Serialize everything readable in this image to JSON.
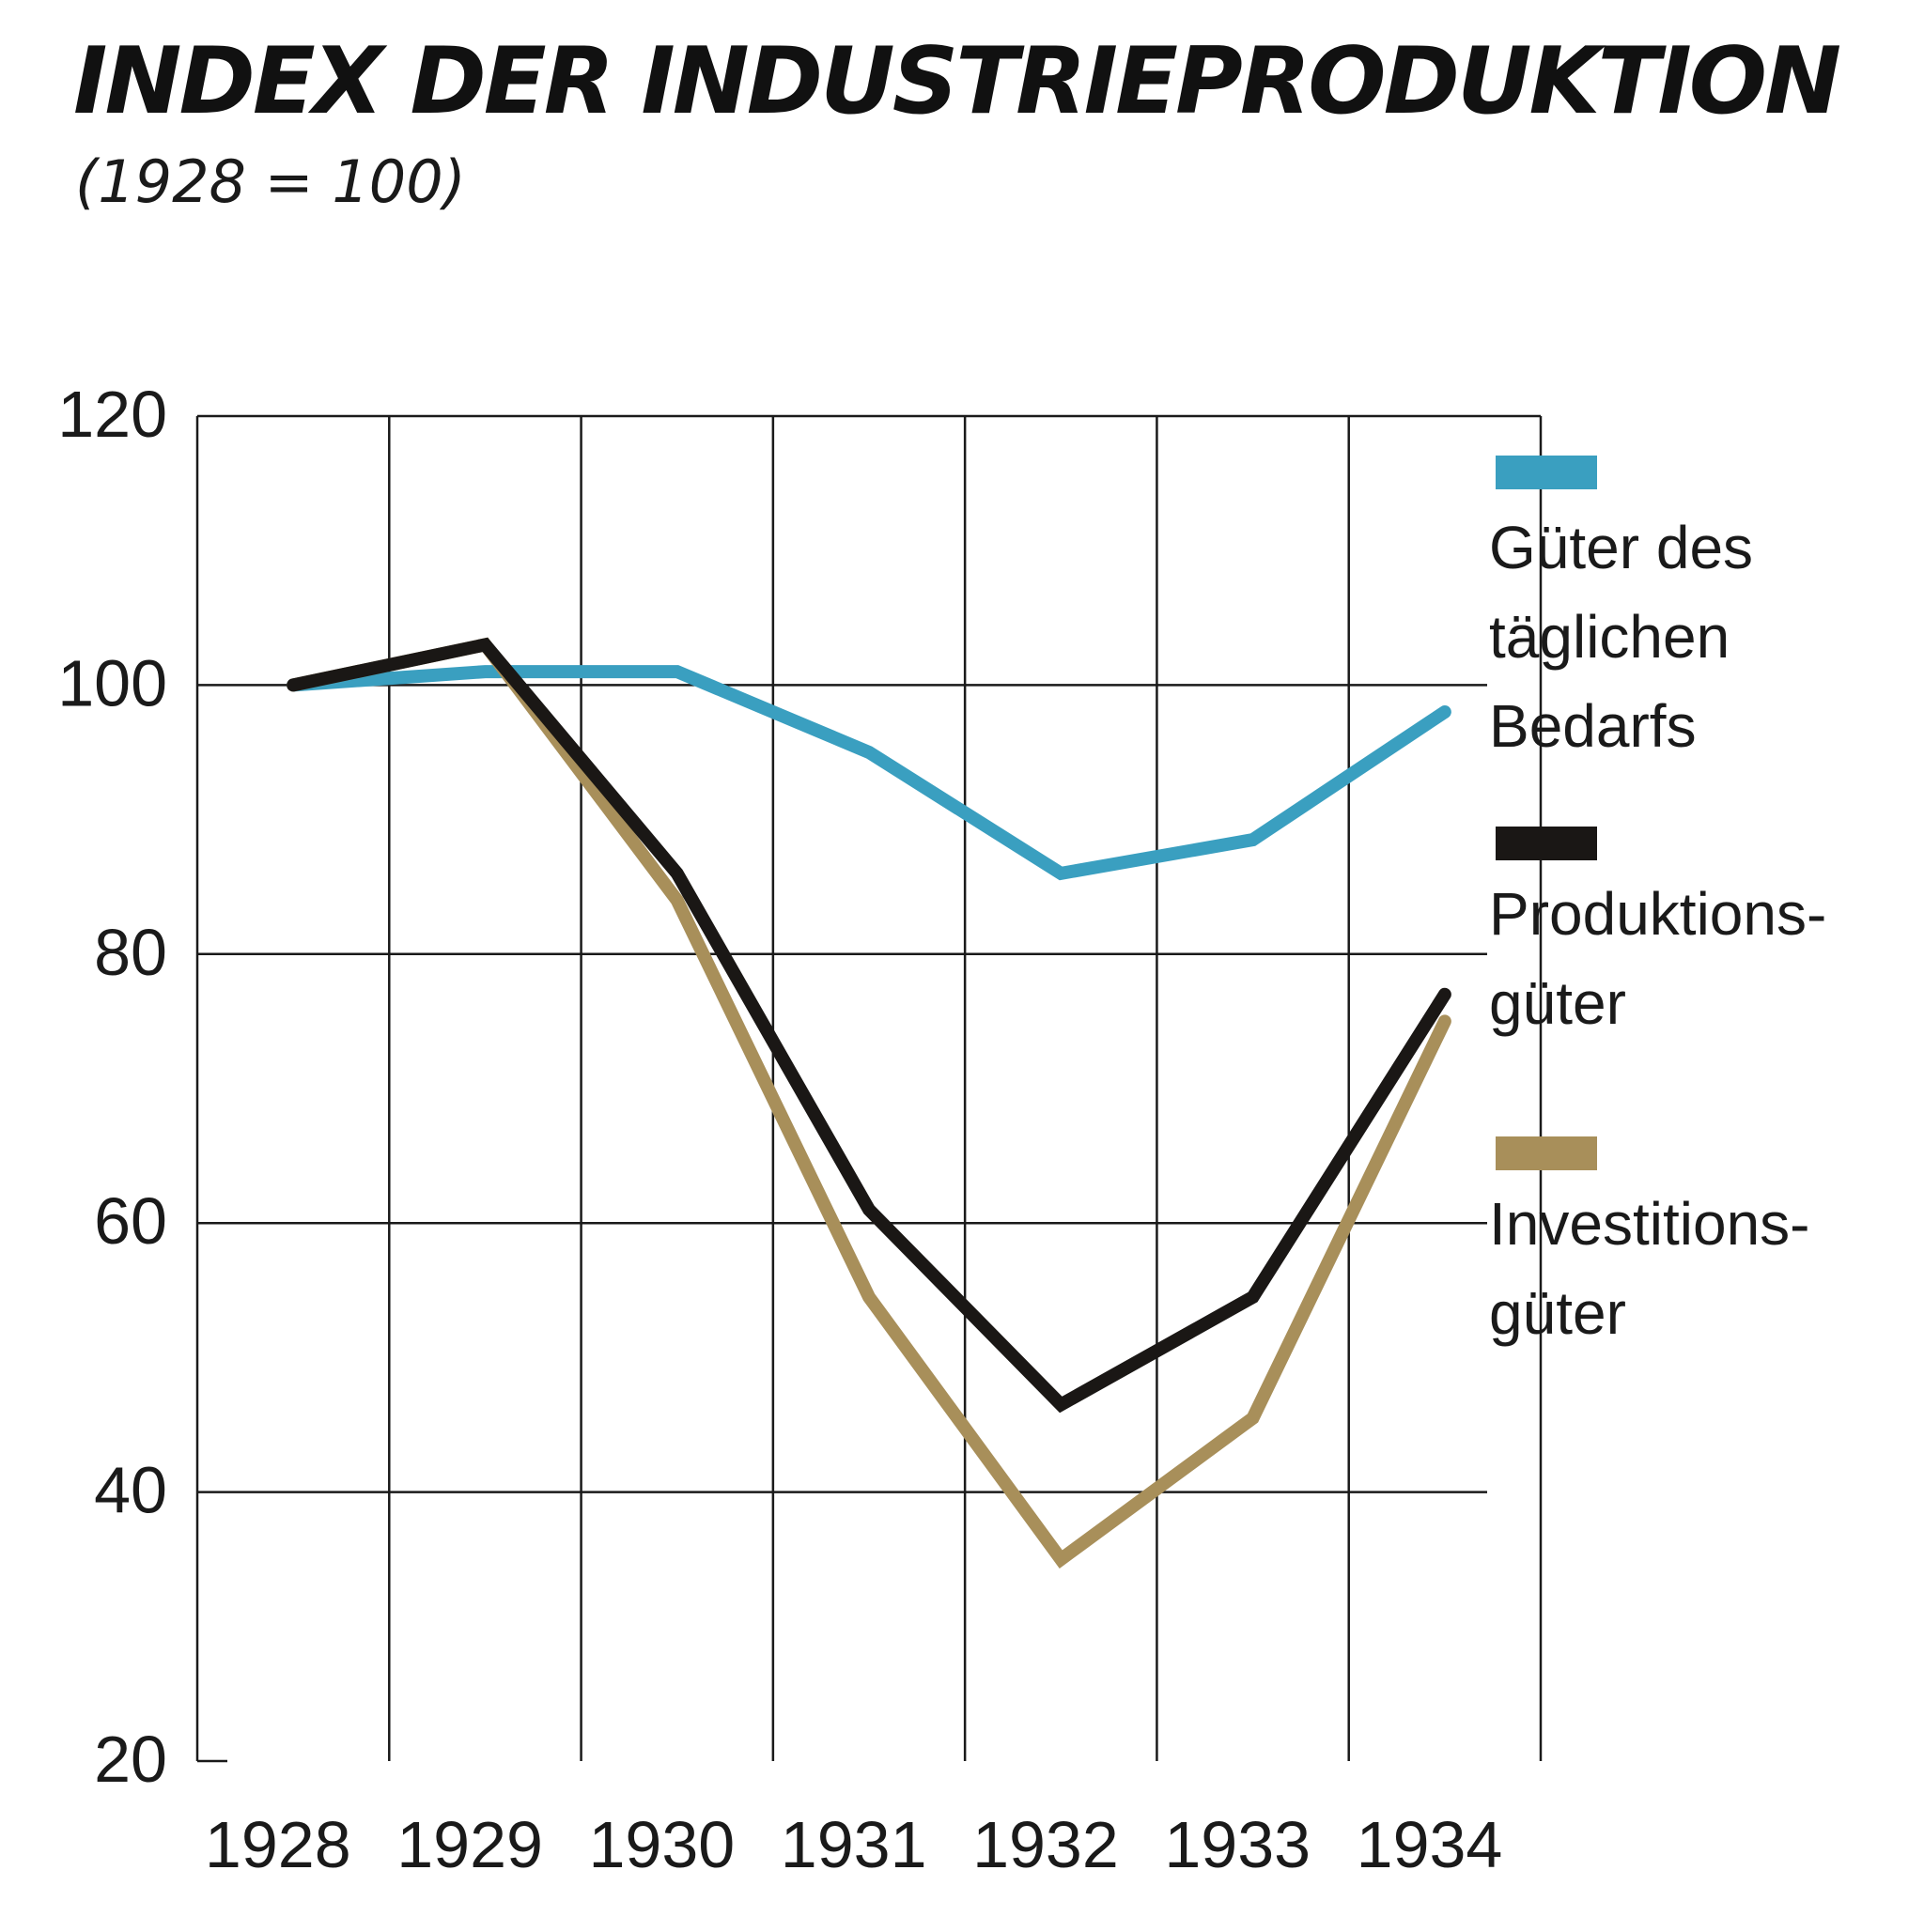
{
  "chart_data": {
    "type": "line",
    "title": "INDEX DER INDUSTRIEPRODUKTION",
    "subtitle": "(1928 = 100)",
    "xlabel": "",
    "ylabel": "",
    "categories": [
      "1928",
      "1929",
      "1930",
      "1931",
      "1932",
      "1933",
      "1934"
    ],
    "x_ticks": [
      "1928",
      "1929",
      "1930",
      "1931",
      "1932",
      "1933",
      "1934"
    ],
    "y_ticks": [
      20,
      40,
      60,
      80,
      100,
      120
    ],
    "ylim": [
      20,
      120
    ],
    "grid": true,
    "legend_position": "right",
    "series": [
      {
        "name_lines": [
          "Güter des",
          "täglichen",
          "Bedarfs"
        ],
        "color": "#3a9fc0",
        "values": [
          100,
          101,
          101,
          95,
          86,
          88.5,
          98
        ]
      },
      {
        "name_lines": [
          "Produktions-",
          "güter"
        ],
        "color": "#1a1715",
        "values": [
          100,
          103,
          86,
          61,
          46.5,
          54.5,
          77
        ]
      },
      {
        "name_lines": [
          "Investitions-",
          "güter"
        ],
        "color": "#a88f5a",
        "values": [
          100,
          103,
          84,
          54.5,
          35,
          45.5,
          75
        ]
      }
    ]
  }
}
